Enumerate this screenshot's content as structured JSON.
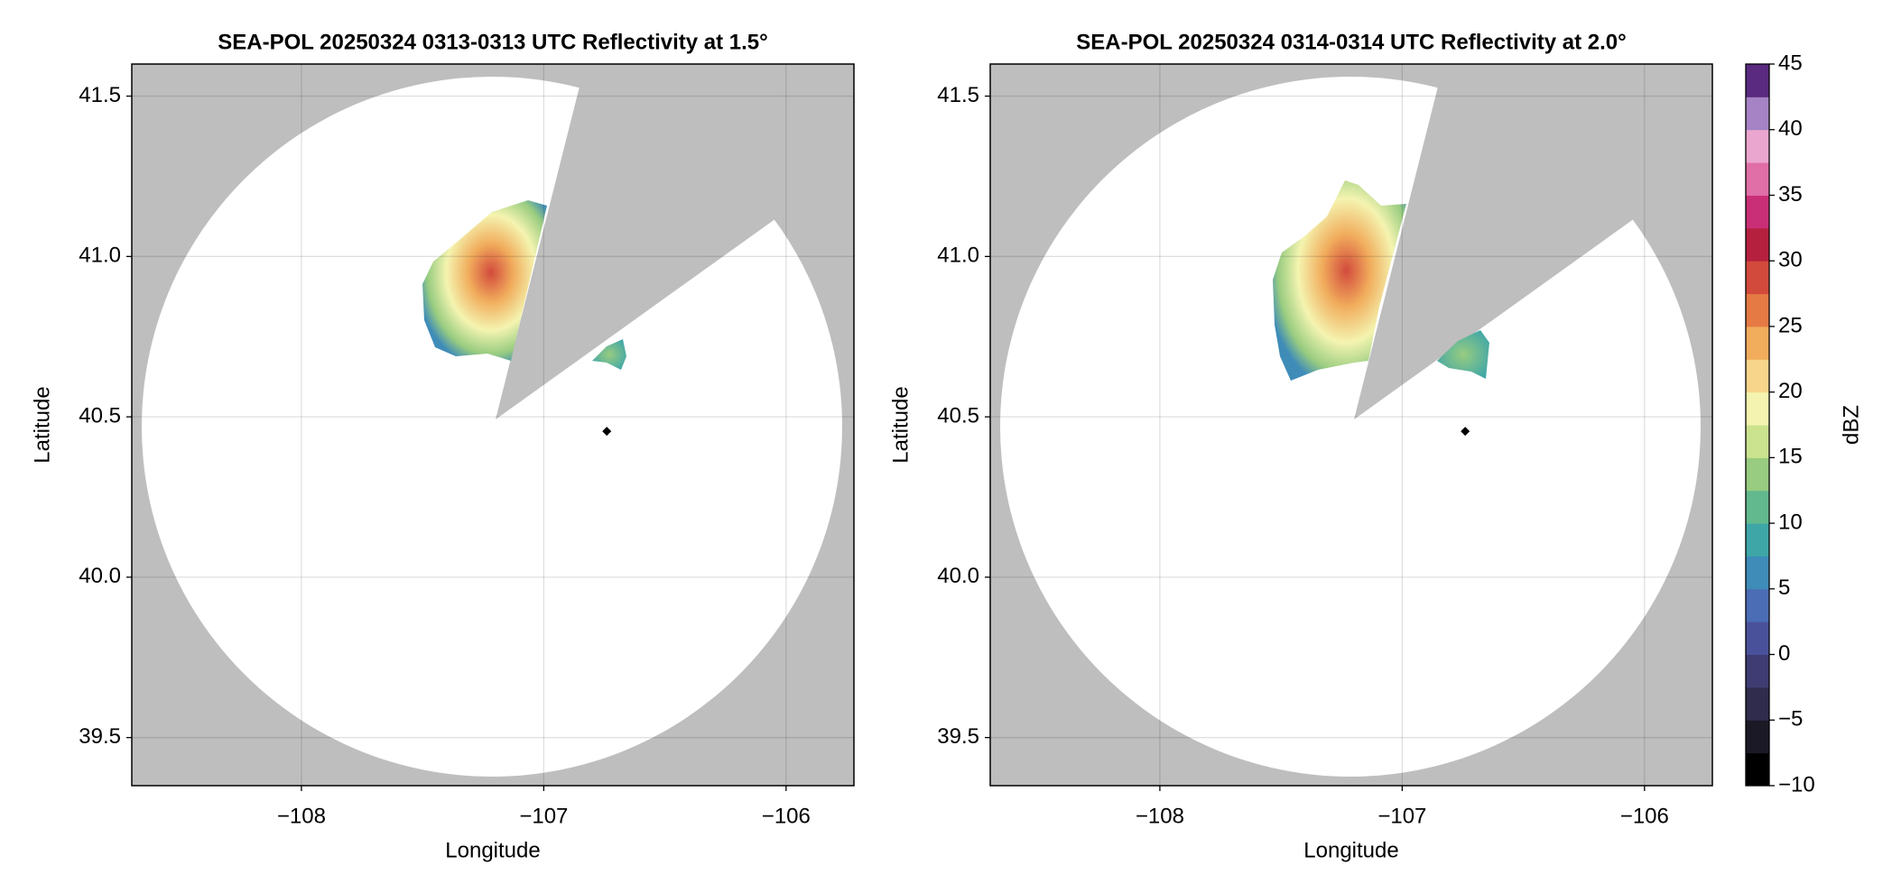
{
  "chart_data": [
    {
      "type": "scatter",
      "title": "SEA-POL 20250324 0313-0313 UTC Reflectivity at 1.5°",
      "xlabel": "Longitude",
      "ylabel": "Latitude",
      "xlim": [
        -108.7,
        -105.72
      ],
      "ylim": [
        39.35,
        41.6
      ],
      "xticks": [
        {
          "value": -108,
          "label": "−108"
        },
        {
          "value": -107,
          "label": "−107"
        },
        {
          "value": -106,
          "label": "−106"
        }
      ],
      "yticks": [
        39.5,
        {
          "value": 40,
          "label": "40.0"
        },
        40.5,
        {
          "value": 41,
          "label": "41.0"
        },
        41.5
      ],
      "grid": true,
      "background": "#bebebe",
      "series": [
        {
          "color": "#000000",
          "x": [
            -106.74
          ],
          "values": [
            40.455
          ]
        }
      ]
    },
    {
      "type": "scatter",
      "title": "SEA-POL 20250324 0314-0314 UTC Reflectivity at 2.0°",
      "xlabel": "Longitude",
      "ylabel": "Latitude",
      "xlim": [
        -108.7,
        -105.72
      ],
      "ylim": [
        39.35,
        41.6
      ],
      "xticks": [
        {
          "value": -108,
          "label": "−108"
        },
        {
          "value": -107,
          "label": "−107"
        },
        {
          "value": -106,
          "label": "−106"
        }
      ],
      "yticks": [
        39.5,
        {
          "value": 40,
          "label": "40.0"
        },
        40.5,
        {
          "value": 41,
          "label": "41.0"
        },
        41.5
      ],
      "grid": true,
      "background": "#bebebe",
      "series": [
        {
          "color": "#000000",
          "x": [
            -106.74
          ],
          "values": [
            40.455
          ]
        }
      ]
    },
    {
      "type": "colorbar",
      "label": "dBZ",
      "ylim": [
        -10,
        45
      ],
      "yticks": [
        {
          "value": -10,
          "label": "−10"
        },
        {
          "value": -5,
          "label": "−5"
        },
        0,
        5,
        10,
        15,
        20,
        25,
        30,
        35,
        40,
        45
      ],
      "colors": [
        "#000000",
        "#1a1925",
        "#2f2c4e",
        "#3e3c72",
        "#4a519b",
        "#4a6db5",
        "#3f8cb8",
        "#3fa6a8",
        "#62b98e",
        "#98cc80",
        "#cbe38e",
        "#f4f4b0",
        "#f7d58a",
        "#f1ac5c",
        "#e57a45",
        "#d24a3c",
        "#b5203f",
        "#c92f77",
        "#e06ea7",
        "#eba6cf",
        "#a683c4",
        "#5a2a80"
      ]
    }
  ]
}
